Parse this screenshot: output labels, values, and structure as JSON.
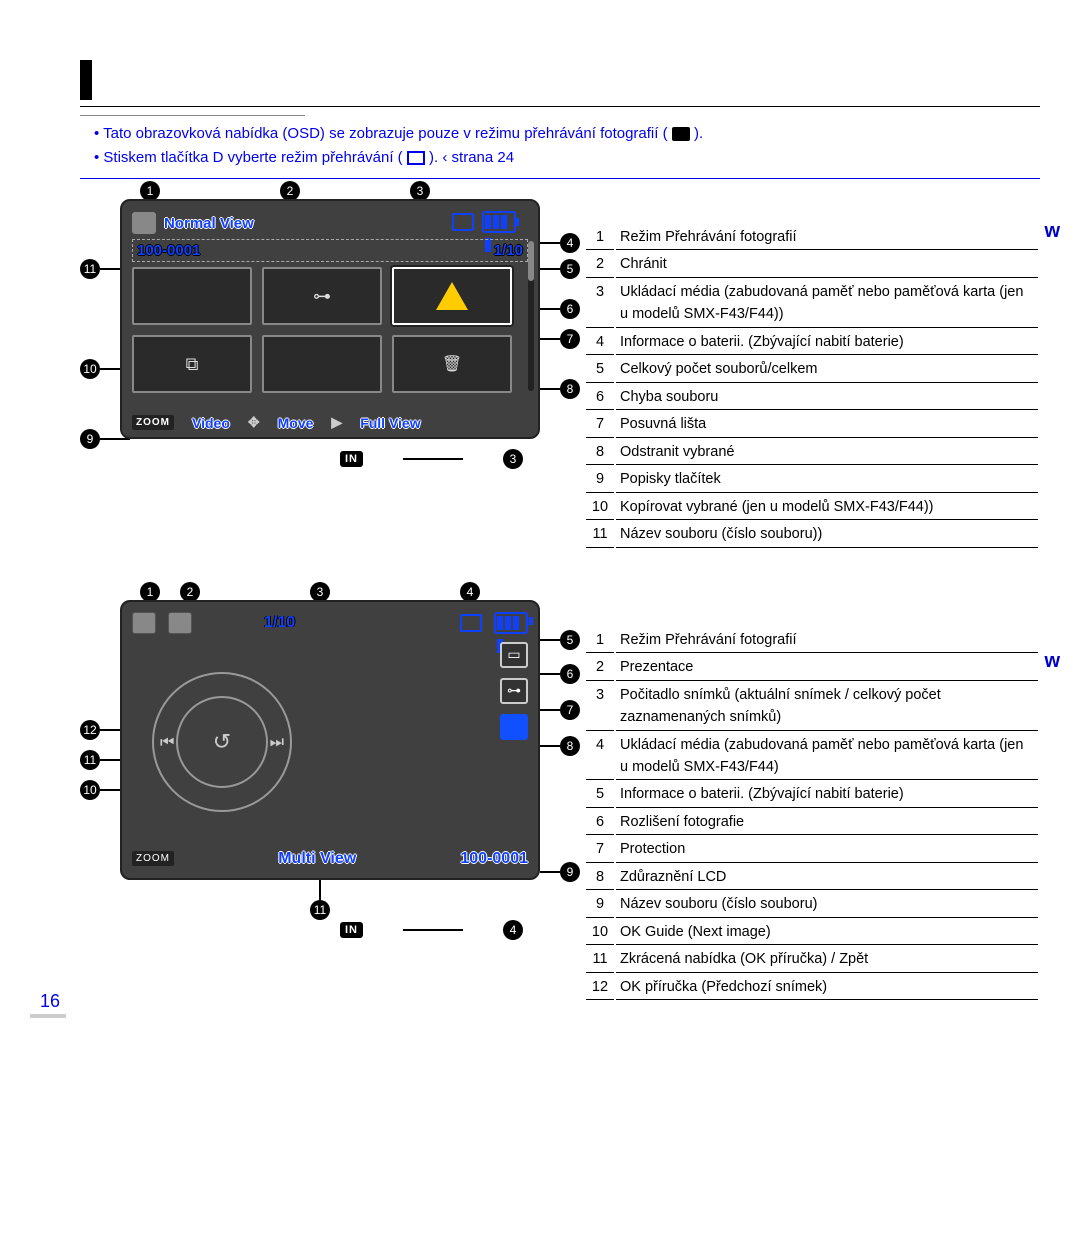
{
  "intro": {
    "bullet1_prefix": "•   Tato obrazovková nabídka (OSD) se zobrazuje pouze v režimu přehrávání fotografií (",
    "bullet1_suffix": ").",
    "bullet2_prefix": "•   Stiskem tlačítka   D  vyberte režim přehrávání (",
    "bullet2_mid": ").  ",
    "bullet2_arrow": "‹",
    "strana": "strana 24"
  },
  "screen1": {
    "title": "Normal View",
    "file_no": "100-0001",
    "counter": "1/10",
    "zoom": "ZOOM",
    "btn_video": "Video",
    "btn_move": "Move",
    "btn_full": "Full View"
  },
  "legend1": [
    {
      "n": "1",
      "t": "Režim Přehrávání fotografií"
    },
    {
      "n": "2",
      "t": "Chránit"
    },
    {
      "n": "3",
      "t": "Ukládací média (zabudovaná paměť nebo paměťová karta (jen u modelů SMX-F43/F44))"
    },
    {
      "n": "4",
      "t": "Informace o baterii. (Zbývající nabití baterie)"
    },
    {
      "n": "5",
      "t": "Celkový počet souborů/celkem"
    },
    {
      "n": "6",
      "t": "Chyba souboru"
    },
    {
      "n": "7",
      "t": "Posuvná lišta"
    },
    {
      "n": "8",
      "t": "Odstranit vybrané"
    },
    {
      "n": "9",
      "t": "Popisky tlačítek"
    },
    {
      "n": "10",
      "t": "Kopírovat vybrané (jen u modelů SMX-F43/F44))"
    },
    {
      "n": "11",
      "t": "Název souboru (číslo souboru))"
    }
  ],
  "in_label": "IN",
  "in_callout1": "3",
  "in_callout2": "4",
  "screen2": {
    "counter": "1/10",
    "zoom": "ZOOM",
    "btn_multi": "Multi View",
    "file_no": "100-0001"
  },
  "legend2": [
    {
      "n": "1",
      "t": "Režim Přehrávání fotografií"
    },
    {
      "n": "2",
      "t": "Prezentace"
    },
    {
      "n": "3",
      "t": "Počitadlo snímků (aktuální snímek / celkový počet zaznamenaných snímků)"
    },
    {
      "n": "4",
      "t": "Ukládací média (zabudovaná paměť nebo paměťová karta (jen u modelů SMX-F43/F44)"
    },
    {
      "n": "5",
      "t": "Informace o baterii. (Zbývající nabití baterie)"
    },
    {
      "n": "6",
      "t": "Rozlišení fotografie"
    },
    {
      "n": "7",
      "t": "Protection"
    },
    {
      "n": "8",
      "t": "Zdůraznění LCD"
    },
    {
      "n": "9",
      "t": "Název souboru (číslo souboru)"
    },
    {
      "n": "10",
      "t": "OK Guide (Next image)"
    },
    {
      "n": "11",
      "t": "Zkrácená nabídka (OK příručka) / Zpět"
    },
    {
      "n": "12",
      "t": "OK příručka (Předchozí snímek)"
    }
  ],
  "right_letter": "w",
  "page_number": "16",
  "callouts1_top": [
    "1",
    "2",
    "3"
  ],
  "callouts1_right": [
    "4",
    "5",
    "6",
    "7",
    "8"
  ],
  "callouts1_left": [
    "11",
    "10",
    "9"
  ],
  "callouts2_top": [
    "1",
    "2",
    "3",
    "4"
  ],
  "callouts2_right": [
    "5",
    "6",
    "7",
    "8"
  ],
  "callouts2_left": [
    "12",
    "11",
    "10"
  ],
  "callouts2_bottom": [
    "9",
    "11"
  ]
}
